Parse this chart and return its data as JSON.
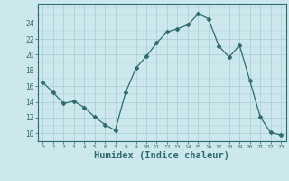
{
  "x": [
    0,
    1,
    2,
    3,
    4,
    5,
    6,
    7,
    8,
    9,
    10,
    11,
    12,
    13,
    14,
    15,
    16,
    17,
    18,
    19,
    20,
    21,
    22,
    23
  ],
  "y": [
    16.5,
    15.2,
    13.8,
    14.1,
    13.3,
    12.1,
    11.1,
    10.4,
    15.2,
    18.3,
    19.8,
    21.5,
    22.9,
    23.3,
    23.8,
    25.2,
    24.6,
    21.1,
    19.7,
    21.2,
    16.7,
    12.1,
    10.1,
    9.8
  ],
  "line_color": "#2e6b6b",
  "marker": "D",
  "marker_size": 2.5,
  "bg_color": "#cce8ec",
  "grid_color": "#a8cdd4",
  "tick_color": "#2e6b6b",
  "xlabel": "Humidex (Indice chaleur)",
  "xlabel_fontsize": 7.5,
  "xlabel_color": "#2e6b6b",
  "yticks": [
    10,
    12,
    14,
    16,
    18,
    20,
    22,
    24
  ],
  "xticks": [
    0,
    1,
    2,
    3,
    4,
    5,
    6,
    7,
    8,
    9,
    10,
    11,
    12,
    13,
    14,
    15,
    16,
    17,
    18,
    19,
    20,
    21,
    22,
    23
  ],
  "ylim": [
    9.0,
    26.5
  ],
  "xlim": [
    -0.5,
    23.5
  ]
}
